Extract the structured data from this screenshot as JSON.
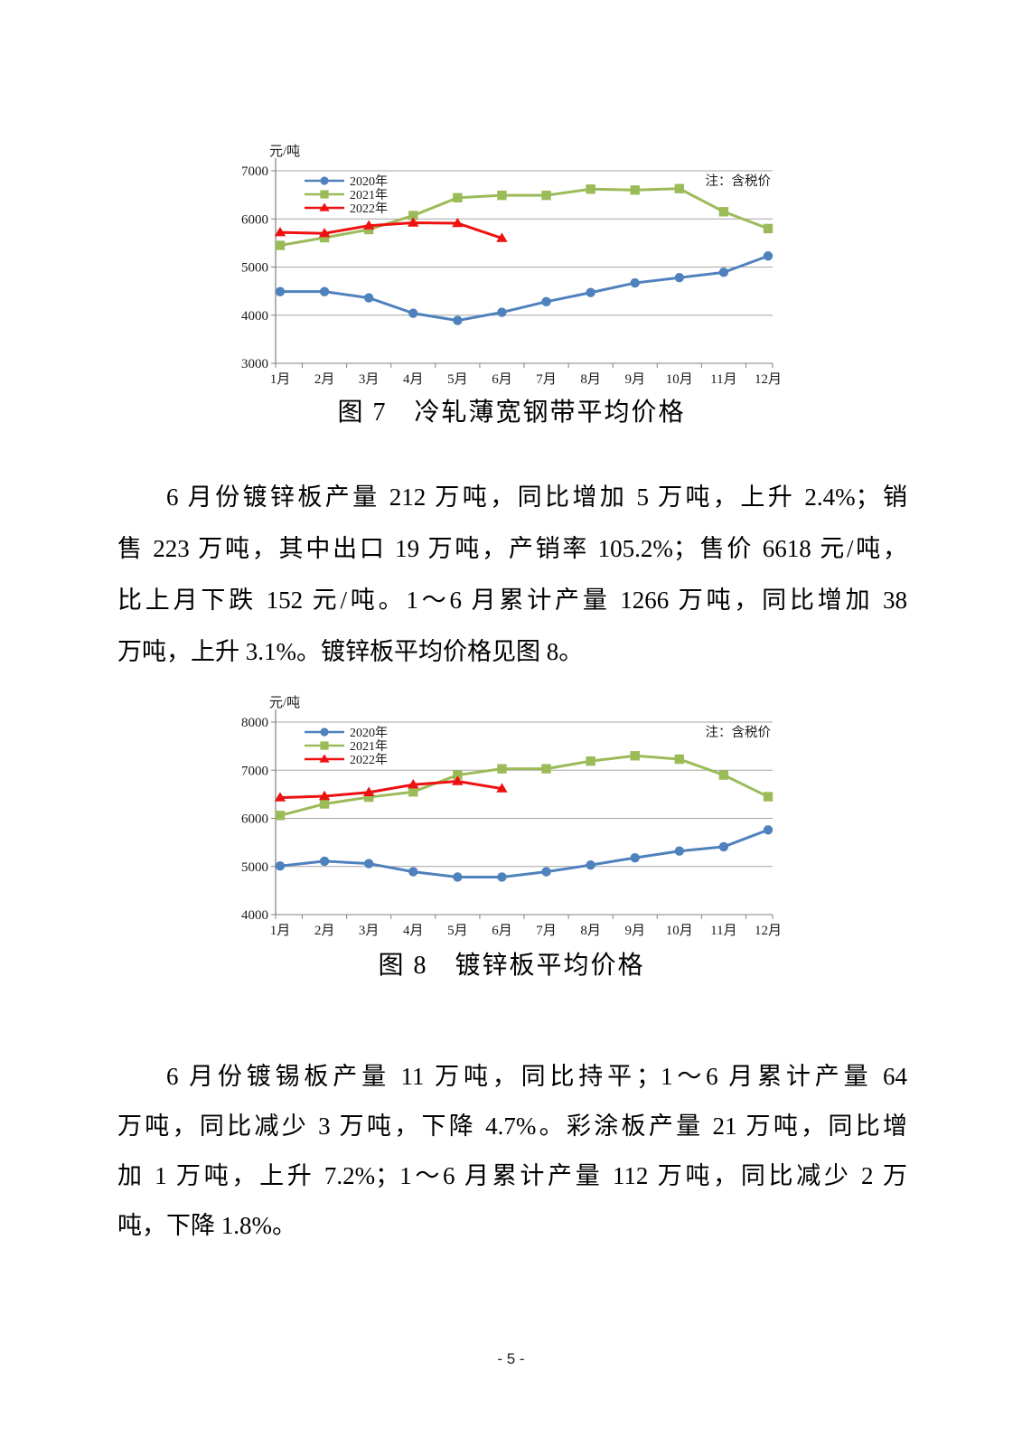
{
  "page": {
    "number_label": "- 5 -",
    "background_color": "#ffffff"
  },
  "paragraphs": [
    {
      "lines": [
        "6 月份镀锌板产量 212 万吨，同比增加 5 万吨，上升 2.4%；销",
        "售 223 万吨，其中出口 19 万吨，产销率 105.2%；售价 6618 元/吨，",
        "比上月下跌 152 元/吨。1～6 月累计产量 1266 万吨，同比增加 38",
        "万吨，上升 3.1%。镀锌板平均价格见图 8。"
      ]
    },
    {
      "lines": [
        "6 月份镀锡板产量 11 万吨，同比持平；1～6 月累计产量 64",
        "万吨，同比减少 3 万吨，下降 4.7%。彩涂板产量 21 万吨，同比增",
        "加 1 万吨，上升 7.2%；1～6 月累计产量 112 万吨，同比减少 2 万",
        "吨，下降 1.8%。"
      ]
    }
  ],
  "chart_colors": {
    "axis": "#808080",
    "grid": "#a6a6a6",
    "series_2020": "#4f81bd",
    "series_2021": "#9bbb59",
    "series_2022": "#ee1111"
  },
  "chart_data": [
    {
      "type": "line",
      "title": "图 7　冷轧薄宽钢带平均价格",
      "ylabel": "元/吨",
      "xlabel": "",
      "note": "注：含税价",
      "grid": true,
      "legend_position": "top-left",
      "categories": [
        "1月",
        "2月",
        "3月",
        "4月",
        "5月",
        "6月",
        "7月",
        "8月",
        "9月",
        "10月",
        "11月",
        "12月"
      ],
      "ylim": [
        3000,
        7000
      ],
      "ytick_step": 1000,
      "series": [
        {
          "name": "2020年",
          "color": "#4f81bd",
          "marker": "circle",
          "values": [
            4490,
            4490,
            4360,
            4040,
            3890,
            4060,
            4280,
            4470,
            4670,
            4780,
            4890,
            5230
          ]
        },
        {
          "name": "2021年",
          "color": "#9bbb59",
          "marker": "square",
          "values": [
            5450,
            5610,
            5780,
            6070,
            6440,
            6490,
            6490,
            6620,
            6600,
            6630,
            6150,
            5800
          ]
        },
        {
          "name": "2022年",
          "color": "#ee1111",
          "marker": "triangle",
          "values": [
            5720,
            5700,
            5860,
            5920,
            5910,
            5600
          ]
        }
      ]
    },
    {
      "type": "line",
      "title": "图 8　镀锌板平均价格",
      "ylabel": "元/吨",
      "xlabel": "",
      "note": "注：含税价",
      "grid": true,
      "legend_position": "top-left",
      "categories": [
        "1月",
        "2月",
        "3月",
        "4月",
        "5月",
        "6月",
        "7月",
        "8月",
        "9月",
        "10月",
        "11月",
        "12月"
      ],
      "ylim": [
        4000,
        8000
      ],
      "ytick_step": 1000,
      "series": [
        {
          "name": "2020年",
          "color": "#4f81bd",
          "marker": "circle",
          "values": [
            5010,
            5110,
            5060,
            4890,
            4780,
            4780,
            4890,
            5030,
            5180,
            5320,
            5410,
            5760
          ]
        },
        {
          "name": "2021年",
          "color": "#9bbb59",
          "marker": "square",
          "values": [
            6060,
            6300,
            6440,
            6550,
            6900,
            7030,
            7030,
            7190,
            7300,
            7230,
            6900,
            6450
          ]
        },
        {
          "name": "2022年",
          "color": "#ee1111",
          "marker": "triangle",
          "values": [
            6430,
            6460,
            6540,
            6700,
            6770,
            6618
          ]
        }
      ]
    }
  ]
}
